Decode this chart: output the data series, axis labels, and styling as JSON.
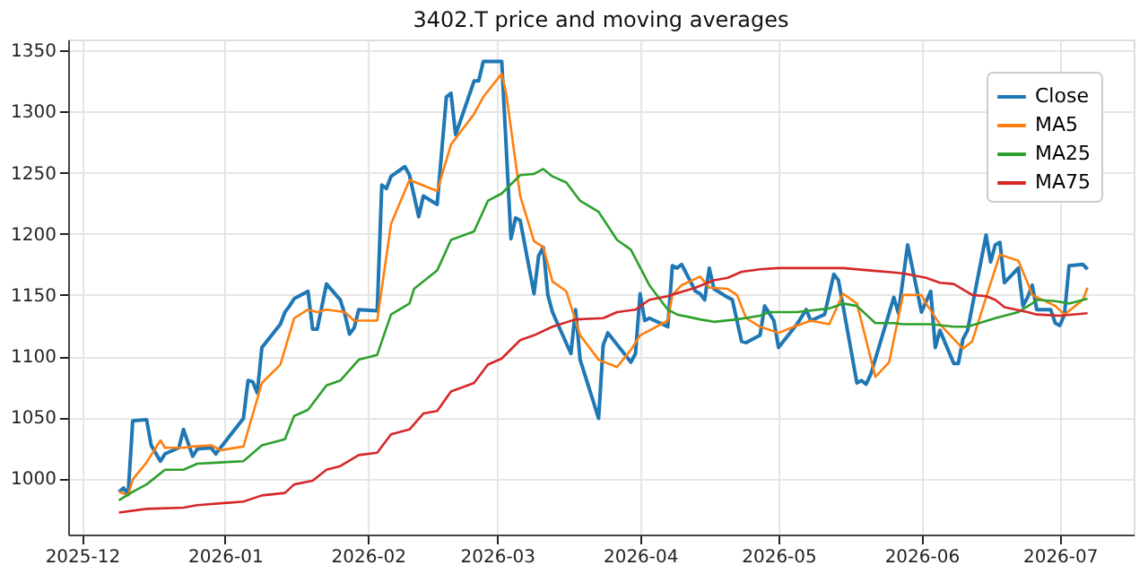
{
  "chart_data": {
    "type": "line",
    "title": "3402.T price and moving averages",
    "xlim": [
      "2025-11-28",
      "2026-07-17"
    ],
    "xticks": [
      "2025-12",
      "2026-01",
      "2026-02",
      "2026-03",
      "2026-04",
      "2026-05",
      "2026-06",
      "2026-07"
    ],
    "ylim": [
      954,
      1359
    ],
    "yticks": [
      1000,
      1050,
      1100,
      1150,
      1200,
      1250,
      1300,
      1350
    ],
    "grid": true,
    "legend": "top right",
    "line_style": "solid",
    "marker": "none",
    "series": [
      {
        "name": "Close",
        "color": "#1f77b4",
        "x": [
          "2025-12-09",
          "2025-12-10",
          "2025-12-11",
          "2025-12-12",
          "2025-12-15",
          "2025-12-16",
          "2025-12-18",
          "2025-12-19",
          "2025-12-22",
          "2025-12-23",
          "2025-12-25",
          "2025-12-26",
          "2025-12-29",
          "2025-12-30",
          "2026-01-05",
          "2026-01-06",
          "2026-01-07",
          "2026-01-08",
          "2026-01-09",
          "2026-01-13",
          "2026-01-14",
          "2026-01-15",
          "2026-01-16",
          "2026-01-19",
          "2026-01-20",
          "2026-01-21",
          "2026-01-23",
          "2026-01-26",
          "2026-01-27",
          "2026-01-28",
          "2026-01-29",
          "2026-01-30",
          "2026-02-03",
          "2026-02-04",
          "2026-02-05",
          "2026-02-06",
          "2026-02-09",
          "2026-02-10",
          "2026-02-12",
          "2026-02-13",
          "2026-02-16",
          "2026-02-18",
          "2026-02-19",
          "2026-02-20",
          "2026-02-24",
          "2026-02-25",
          "2026-02-26",
          "2026-03-02",
          "2026-03-04",
          "2026-03-05",
          "2026-03-06",
          "2026-03-09",
          "2026-03-10",
          "2026-03-11",
          "2026-03-12",
          "2026-03-13",
          "2026-03-17",
          "2026-03-18",
          "2026-03-19",
          "2026-03-23",
          "2026-03-24",
          "2026-03-25",
          "2026-03-30",
          "2026-03-31",
          "2026-04-01",
          "2026-04-02",
          "2026-04-03",
          "2026-04-07",
          "2026-04-08",
          "2026-04-09",
          "2026-04-10",
          "2026-04-13",
          "2026-04-14",
          "2026-04-15",
          "2026-04-16",
          "2026-04-17",
          "2026-04-20",
          "2026-04-21",
          "2026-04-23",
          "2026-04-24",
          "2026-04-27",
          "2026-04-28",
          "2026-04-30",
          "2026-05-01",
          "2026-05-05",
          "2026-05-07",
          "2026-05-08",
          "2026-05-11",
          "2026-05-13",
          "2026-05-14",
          "2026-05-18",
          "2026-05-19",
          "2026-05-20",
          "2026-05-21",
          "2026-05-26",
          "2026-05-27",
          "2026-05-29",
          "2026-06-01",
          "2026-06-03",
          "2026-06-04",
          "2026-06-05",
          "2026-06-08",
          "2026-06-09",
          "2026-06-10",
          "2026-06-11",
          "2026-06-15",
          "2026-06-16",
          "2026-06-17",
          "2026-06-18",
          "2026-06-19",
          "2026-06-22",
          "2026-06-23",
          "2026-06-24",
          "2026-06-25",
          "2026-06-26",
          "2026-06-29",
          "2026-06-30",
          "2026-07-01",
          "2026-07-02",
          "2026-07-03",
          "2026-07-06",
          "2026-07-07"
        ],
        "values": [
          989,
          992,
          987,
          1047,
          1048,
          1027,
          1014,
          1020,
          1025,
          1040,
          1018,
          1024,
          1025,
          1020,
          1049,
          1080,
          1079,
          1070,
          1107,
          1126,
          1136,
          1141,
          1147,
          1153,
          1122,
          1122,
          1159,
          1146,
          1134,
          1118,
          1123,
          1138,
          1137,
          1240,
          1237,
          1247,
          1255,
          1248,
          1214,
          1231,
          1224,
          1312,
          1315,
          1281,
          1325,
          1325,
          1341,
          1341,
          1196,
          1213,
          1211,
          1151,
          1182,
          1189,
          1150,
          1136,
          1102,
          1138,
          1097,
          1049,
          1109,
          1119,
          1095,
          1102,
          1151,
          1129,
          1131,
          1124,
          1174,
          1172,
          1175,
          1153,
          1151,
          1146,
          1172,
          1155,
          1148,
          1146,
          1112,
          1111,
          1117,
          1141,
          1129,
          1107,
          1126,
          1138,
          1129,
          1134,
          1167,
          1162,
          1078,
          1080,
          1077,
          1085,
          1148,
          1135,
          1191,
          1136,
          1153,
          1107,
          1121,
          1094,
          1094,
          1114,
          1121,
          1199,
          1177,
          1191,
          1193,
          1160,
          1172,
          1141,
          1148,
          1158,
          1138,
          1138,
          1127,
          1125,
          1134,
          1174,
          1175,
          1171
        ]
      },
      {
        "name": "MA5",
        "color": "#ff7f0e",
        "x": [
          "2025-12-09",
          "2025-12-11",
          "2025-12-12",
          "2025-12-15",
          "2025-12-18",
          "2025-12-19",
          "2025-12-23",
          "2025-12-25",
          "2025-12-29",
          "2025-12-31",
          "2026-01-05",
          "2026-01-09",
          "2026-01-13",
          "2026-01-16",
          "2026-01-19",
          "2026-01-21",
          "2026-01-23",
          "2026-01-27",
          "2026-01-29",
          "2026-02-03",
          "2026-02-06",
          "2026-02-10",
          "2026-02-12",
          "2026-02-16",
          "2026-02-19",
          "2026-02-24",
          "2026-02-26",
          "2026-03-02",
          "2026-03-03",
          "2026-03-06",
          "2026-03-09",
          "2026-03-11",
          "2026-03-13",
          "2026-03-16",
          "2026-03-19",
          "2026-03-23",
          "2026-03-27",
          "2026-03-30",
          "2026-04-01",
          "2026-04-07",
          "2026-04-08",
          "2026-04-10",
          "2026-04-14",
          "2026-04-16",
          "2026-04-20",
          "2026-04-22",
          "2026-04-24",
          "2026-04-27",
          "2026-05-01",
          "2026-05-05",
          "2026-05-08",
          "2026-05-12",
          "2026-05-15",
          "2026-05-18",
          "2026-05-22",
          "2026-05-25",
          "2026-05-28",
          "2026-06-01",
          "2026-06-02",
          "2026-06-05",
          "2026-06-10",
          "2026-06-12",
          "2026-06-15",
          "2026-06-18",
          "2026-06-22",
          "2026-06-24",
          "2026-06-25",
          "2026-06-30",
          "2026-07-02",
          "2026-07-06",
          "2026-07-07"
        ],
        "values": [
          989,
          986,
          999,
          1013,
          1031,
          1025,
          1025,
          1026,
          1027,
          1023,
          1026,
          1078,
          1093,
          1131,
          1138,
          1136,
          1138,
          1136,
          1129,
          1129,
          1208,
          1244,
          1241,
          1235,
          1273,
          1298,
          1312,
          1331,
          1314,
          1231,
          1194,
          1189,
          1161,
          1153,
          1117,
          1097,
          1091,
          1105,
          1117,
          1129,
          1150,
          1158,
          1165,
          1156,
          1155,
          1150,
          1131,
          1124,
          1119,
          1125,
          1129,
          1126,
          1151,
          1143,
          1083,
          1095,
          1150,
          1150,
          1143,
          1126,
          1106,
          1112,
          1148,
          1183,
          1178,
          1160,
          1150,
          1141,
          1134,
          1146,
          1156
        ]
      },
      {
        "name": "MA25",
        "color": "#2ca02c",
        "x": [
          "2025-12-09",
          "2025-12-12",
          "2025-12-15",
          "2025-12-19",
          "2025-12-23",
          "2025-12-26",
          "2025-12-31",
          "2026-01-05",
          "2026-01-09",
          "2026-01-14",
          "2026-01-16",
          "2026-01-19",
          "2026-01-23",
          "2026-01-26",
          "2026-01-30",
          "2026-02-03",
          "2026-02-06",
          "2026-02-10",
          "2026-02-11",
          "2026-02-16",
          "2026-02-19",
          "2026-02-24",
          "2026-02-27",
          "2026-03-02",
          "2026-03-06",
          "2026-03-09",
          "2026-03-11",
          "2026-03-13",
          "2026-03-16",
          "2026-03-19",
          "2026-03-23",
          "2026-03-27",
          "2026-03-30",
          "2026-04-03",
          "2026-04-07",
          "2026-04-09",
          "2026-04-14",
          "2026-04-17",
          "2026-04-22",
          "2026-04-27",
          "2026-04-29",
          "2026-05-05",
          "2026-05-12",
          "2026-05-15",
          "2026-05-18",
          "2026-05-22",
          "2026-05-26",
          "2026-05-28",
          "2026-06-03",
          "2026-06-08",
          "2026-06-11",
          "2026-06-17",
          "2026-06-22",
          "2026-06-25",
          "2026-06-26",
          "2026-06-30",
          "2026-07-03",
          "2026-07-07"
        ],
        "values": [
          982,
          989,
          995,
          1007,
          1007,
          1012,
          1013,
          1014,
          1027,
          1032,
          1051,
          1056,
          1076,
          1080,
          1097,
          1101,
          1134,
          1143,
          1155,
          1170,
          1195,
          1202,
          1227,
          1233,
          1248,
          1249,
          1253,
          1247,
          1242,
          1227,
          1218,
          1195,
          1187,
          1158,
          1138,
          1134,
          1130,
          1128,
          1130,
          1133,
          1136,
          1136,
          1139,
          1143,
          1141,
          1127,
          1127,
          1126,
          1126,
          1124,
          1124,
          1131,
          1136,
          1143,
          1146,
          1145,
          1143,
          1147
        ]
      },
      {
        "name": "MA75",
        "color": "#d62728",
        "x": [
          "2025-12-09",
          "2025-12-15",
          "2025-12-23",
          "2025-12-26",
          "2026-01-05",
          "2026-01-09",
          "2026-01-14",
          "2026-01-16",
          "2026-01-20",
          "2026-01-23",
          "2026-01-26",
          "2026-01-30",
          "2026-02-03",
          "2026-02-06",
          "2026-02-10",
          "2026-02-13",
          "2026-02-16",
          "2026-02-19",
          "2026-02-24",
          "2026-02-27",
          "2026-03-02",
          "2026-03-06",
          "2026-03-09",
          "2026-03-13",
          "2026-03-18",
          "2026-03-24",
          "2026-03-27",
          "2026-03-31",
          "2026-04-03",
          "2026-04-07",
          "2026-04-13",
          "2026-04-17",
          "2026-04-20",
          "2026-04-23",
          "2026-04-27",
          "2026-05-01",
          "2026-05-13",
          "2026-05-15",
          "2026-05-21",
          "2026-05-27",
          "2026-05-29",
          "2026-06-02",
          "2026-06-05",
          "2026-06-08",
          "2026-06-12",
          "2026-06-15",
          "2026-06-17",
          "2026-06-19",
          "2026-06-24",
          "2026-06-26",
          "2026-07-01",
          "2026-07-07"
        ],
        "values": [
          972,
          975,
          976,
          978,
          981,
          986,
          988,
          995,
          998,
          1007,
          1010,
          1019,
          1021,
          1036,
          1040,
          1053,
          1055,
          1071,
          1078,
          1093,
          1098,
          1113,
          1117,
          1124,
          1130,
          1131,
          1136,
          1138,
          1146,
          1149,
          1156,
          1162,
          1164,
          1169,
          1171,
          1172,
          1172,
          1172,
          1170,
          1168,
          1167,
          1164,
          1160,
          1159,
          1150,
          1149,
          1146,
          1140,
          1136,
          1134,
          1133,
          1135
        ]
      }
    ]
  }
}
